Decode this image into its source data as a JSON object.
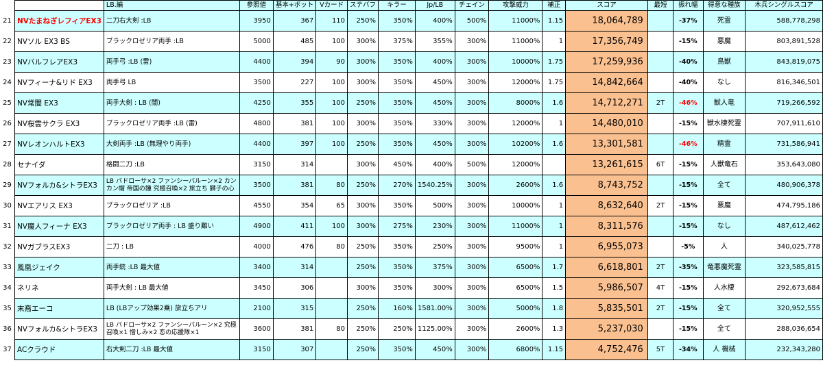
{
  "headers": {
    "lb": "LB.編",
    "ref": "参照値",
    "base": "基本+ボット",
    "vcard": "Vカード",
    "stbuf": "ステバフ",
    "killer": "キラー",
    "jplb": "Jp/LB",
    "chain": "チェイン",
    "atk": "攻撃威力",
    "corr": "補正",
    "score": "スコア",
    "short": "最短",
    "range": "振れ幅",
    "type": "得意な種族",
    "single": "木兵シングルスコア"
  },
  "rows": [
    {
      "no": "21",
      "name": "NVたまねぎレフィアEX3",
      "lb": "二刀右大剣 :LB",
      "ref": "3950",
      "base": "367",
      "vcard": "110",
      "stbuf": "250%",
      "killer": "350%",
      "jplb": "400%",
      "chain": "500%",
      "atk": "11000%",
      "corr": "1.15",
      "score": "18,064,789",
      "short": "",
      "range": "-37%",
      "type": "死霊",
      "single": "588,778,298"
    },
    {
      "no": "22",
      "name": "NVソル EX3 BS",
      "lb": "ブラックロゼリア両手 :LB",
      "ref": "5000",
      "base": "485",
      "vcard": "100",
      "stbuf": "300%",
      "killer": "375%",
      "jplb": "355%",
      "chain": "300%",
      "atk": "11000%",
      "corr": "1",
      "score": "17,356,749",
      "short": "",
      "range": "-15%",
      "type": "悪魔",
      "single": "803,891,528"
    },
    {
      "no": "23",
      "name": "NVバルフレアEX3",
      "lb": "両手弓 :LB (雷)",
      "ref": "4400",
      "base": "394",
      "vcard": "90",
      "stbuf": "300%",
      "killer": "350%",
      "jplb": "400%",
      "chain": "300%",
      "atk": "10000%",
      "corr": "1.75",
      "score": "17,259,936",
      "short": "",
      "range": "-40%",
      "type": "鳥獣",
      "single": "843,819,075"
    },
    {
      "no": "24",
      "name": "NVフィーナ&リド EX3",
      "lb": "両手弓 LB",
      "ref": "3500",
      "base": "227",
      "vcard": "100",
      "stbuf": "300%",
      "killer": "350%",
      "jplb": "450%",
      "chain": "300%",
      "atk": "12000%",
      "corr": "1.75",
      "score": "14,842,664",
      "short": "",
      "range": "-40%",
      "type": "なし",
      "single": "816,346,501"
    },
    {
      "no": "25",
      "name": "NV常闇 EX3",
      "lb": "両手大剣 : LB (闇)",
      "ref": "4250",
      "base": "355",
      "vcard": "100",
      "stbuf": "250%",
      "killer": "350%",
      "jplb": "450%",
      "chain": "300%",
      "atk": "8000%",
      "corr": "1.6",
      "score": "14,712,271",
      "short": "2T",
      "range": "-46%",
      "type": "獣人竜",
      "single": "719,266,592"
    },
    {
      "no": "26",
      "name": "NV桜雲サクラ EX3",
      "lb": "ブラックロゼリア両手 :LB (雷)",
      "ref": "4800",
      "base": "381",
      "vcard": "100",
      "stbuf": "300%",
      "killer": "350%",
      "jplb": "330%",
      "chain": "300%",
      "atk": "12000%",
      "corr": "1",
      "score": "14,480,010",
      "short": "",
      "range": "-15%",
      "type": "獣水棲死霊",
      "single": "707,911,610"
    },
    {
      "no": "27",
      "name": "NVレオンハルトEX3",
      "lb": "大剣両手 :LB (無理やり両手)",
      "ref": "4400",
      "base": "397",
      "vcard": "100",
      "stbuf": "250%",
      "killer": "350%",
      "jplb": "450%",
      "chain": "300%",
      "atk": "10200%",
      "corr": "1.6",
      "score": "13,301,581",
      "short": "",
      "range": "-46%",
      "type": "精霊",
      "single": "731,586,941"
    },
    {
      "no": "28",
      "name": "セナイダ",
      "lb": "格闘二刀 :LB",
      "ref": "3150",
      "base": "314",
      "vcard": "",
      "stbuf": "300%",
      "killer": "450%",
      "jplb": "400%",
      "chain": "500%",
      "atk": "12000%",
      "corr": "",
      "score": "13,261,615",
      "short": "6T",
      "range": "-15%",
      "type": "人獣竜石",
      "single": "353,643,080"
    },
    {
      "no": "29",
      "name": "NVフォルカ&シトラEX3",
      "lb": "LB バドローサ×2 ファンシーバルーン×2 カンカン帽 帝国の鍾 究極召喚×2 旅立ち 獅子の心",
      "ref": "3500",
      "base": "381",
      "vcard": "80",
      "stbuf": "250%",
      "killer": "270%",
      "jplb": "1540.25%",
      "chain": "300%",
      "atk": "2600%",
      "corr": "1.6",
      "score": "8,743,752",
      "short": "",
      "range": "-15%",
      "type": "全て",
      "single": "480,906,378"
    },
    {
      "no": "30",
      "name": "NVエアリス EX3",
      "lb": "ブラックロゼリア :LB",
      "ref": "4550",
      "base": "354",
      "vcard": "65",
      "stbuf": "300%",
      "killer": "350%",
      "jplb": "500%",
      "chain": "300%",
      "atk": "10000%",
      "corr": "1",
      "score": "8,632,640",
      "short": "2T",
      "range": "-15%",
      "type": "悪魔",
      "single": "474,795,186"
    },
    {
      "no": "31",
      "name": "NV魔人フィーナ EX3",
      "lb": "ブラックロゼリア両手 : LB 盛り難い",
      "ref": "4900",
      "base": "411",
      "vcard": "100",
      "stbuf": "300%",
      "killer": "275%",
      "jplb": "230%",
      "chain": "300%",
      "atk": "11000%",
      "corr": "1",
      "score": "8,311,576",
      "short": "",
      "range": "-15%",
      "type": "なし",
      "single": "487,612,462"
    },
    {
      "no": "32",
      "name": "NVガブラスEX3",
      "lb": "二刀 : LB",
      "ref": "4000",
      "base": "476",
      "vcard": "80",
      "stbuf": "250%",
      "killer": "350%",
      "jplb": "250%",
      "chain": "300%",
      "atk": "9500%",
      "corr": "1",
      "score": "6,955,073",
      "short": "",
      "range": "-5%",
      "type": "人",
      "single": "340,025,778"
    },
    {
      "no": "33",
      "name": "風凰ジェイク",
      "lb": "両手銃 :LB 最大値",
      "ref": "3400",
      "base": "314",
      "vcard": "",
      "stbuf": "250%",
      "killer": "350%",
      "jplb": "375%",
      "chain": "300%",
      "atk": "6500%",
      "corr": "1.7",
      "score": "6,618,801",
      "short": "2T",
      "range": "-35%",
      "type": "竜悪魔死霊",
      "single": "323,585,815"
    },
    {
      "no": "34",
      "name": "ネリネ",
      "lb": "両手大剣 : LB 最大値",
      "ref": "3450",
      "base": "306",
      "vcard": "",
      "stbuf": "300%",
      "killer": "350%",
      "jplb": "300%",
      "chain": "300%",
      "atk": "6500%",
      "corr": "1.5",
      "score": "5,986,507",
      "short": "4T",
      "range": "-15%",
      "type": "人水棲",
      "single": "292,673,684"
    },
    {
      "no": "35",
      "name": "末裔エーコ",
      "lb": "LB (LBアップ効果2乗) 旅立ちアリ",
      "ref": "2100",
      "base": "315",
      "vcard": "",
      "stbuf": "250%",
      "killer": "160%",
      "jplb": "1581.00%",
      "chain": "300%",
      "atk": "5000%",
      "corr": "1.8",
      "score": "5,835,501",
      "short": "2T",
      "range": "-15%",
      "type": "全て",
      "single": "320,952,555"
    },
    {
      "no": "36",
      "name": "NVフォルカ&シトラEX3",
      "lb": "LB バドローサ×2 ファンシーバルーン×2 究極召喚×1 憎しみ×2 恋の応援隊×1",
      "ref": "3600",
      "base": "381",
      "vcard": "80",
      "stbuf": "250%",
      "killer": "250%",
      "jplb": "1125.00%",
      "chain": "300%",
      "atk": "2600%",
      "corr": "1.3",
      "score": "5,237,030",
      "short": "",
      "range": "-15%",
      "type": "全て",
      "single": "288,036,654"
    },
    {
      "no": "37",
      "name": "ACクラウド",
      "lb": "右大剣二刀 :LB 最大値",
      "ref": "3150",
      "base": "307",
      "vcard": "",
      "stbuf": "250%",
      "killer": "350%",
      "jplb": "450%",
      "chain": "300%",
      "atk": "6800%",
      "corr": "1.15",
      "score": "4,752,476",
      "short": "5T",
      "range": "-34%",
      "type": "人 機械",
      "single": "232,343,280"
    }
  ],
  "colors": {
    "header_cyan": "#ccffff",
    "score_orange": "#fac090",
    "highlight_red": "#ff0000"
  }
}
